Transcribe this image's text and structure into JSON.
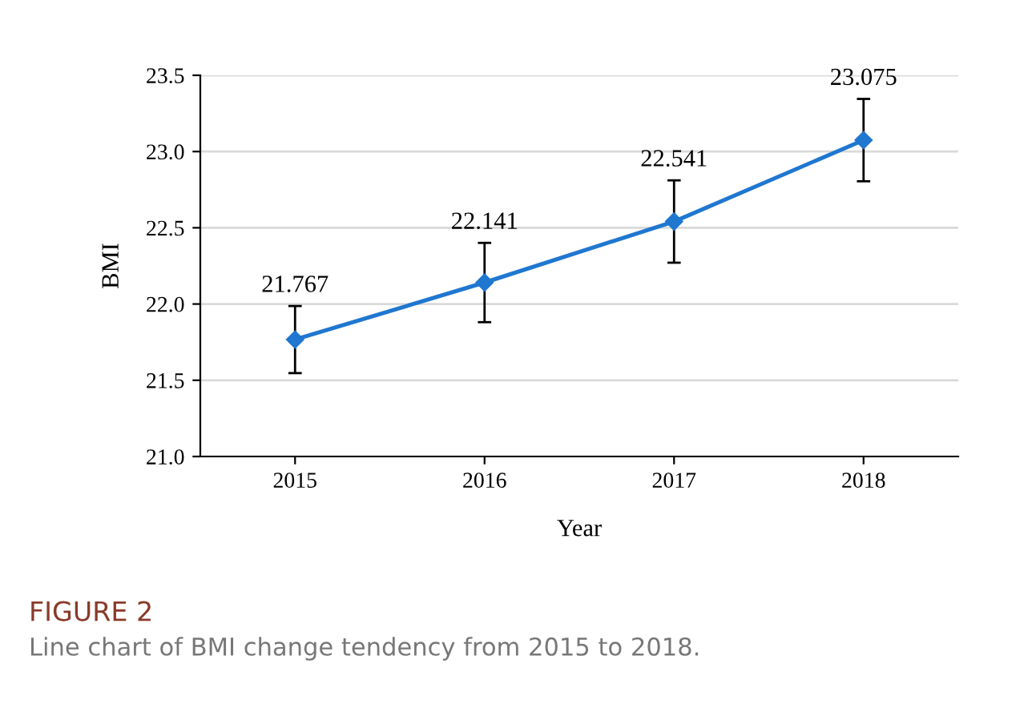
{
  "chart_data": {
    "type": "line",
    "xlabel": "Year",
    "ylabel": "BMI",
    "categories": [
      "2015",
      "2016",
      "2017",
      "2018"
    ],
    "series": [
      {
        "color": "#1f77d0",
        "values": [
          21.767,
          22.141,
          22.541,
          23.075
        ],
        "errors": [
          0.22,
          0.26,
          0.27,
          0.27
        ]
      }
    ],
    "ylim": [
      21.0,
      23.5
    ],
    "yticks": [
      {
        "value": 21.0,
        "label": "21.0"
      },
      {
        "value": 21.5,
        "label": "21.5"
      },
      {
        "value": 22.0,
        "label": "22.0"
      },
      {
        "value": 22.5,
        "label": "22.5"
      },
      {
        "value": 23.0,
        "label": "23.0"
      },
      {
        "value": 23.5,
        "label": "23.5"
      }
    ],
    "grid": "y",
    "marker": "diamond",
    "line_style": "solid",
    "data_labels": true,
    "annotations": [
      "FIGURE 2",
      "Line chart of BMI change tendency from 2015 to 2018."
    ]
  }
}
